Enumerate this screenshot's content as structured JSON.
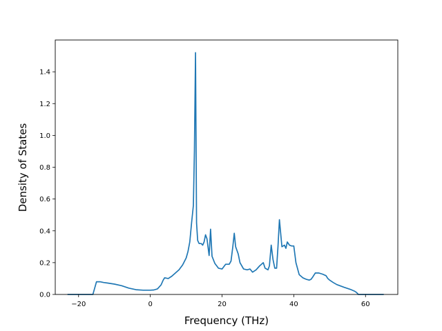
{
  "chart_data": {
    "type": "line",
    "title": "",
    "xlabel": "Frequency (THz)",
    "ylabel": "Density of States",
    "xlim": [
      -26.5,
      69.0
    ],
    "ylim": [
      0.0,
      1.6
    ],
    "xticks": [
      -20,
      0,
      20,
      40,
      60
    ],
    "yticks": [
      0.0,
      0.2,
      0.4,
      0.6,
      0.8,
      1.0,
      1.2,
      1.4
    ],
    "xtick_labels": [
      "−20",
      "0",
      "20",
      "40",
      "60"
    ],
    "ytick_labels": [
      "0.0",
      "0.2",
      "0.4",
      "0.6",
      "0.8",
      "1.0",
      "1.2",
      "1.4"
    ],
    "grid": false,
    "line_color": "#1f77b4",
    "series": [
      {
        "x": [
          -23.0,
          -20.0,
          -17.0,
          -16.0,
          -15.5,
          -15.0,
          -14.0,
          -13.0,
          -12.0,
          -10.0,
          -8.0,
          -6.0,
          -4.0,
          -2.0,
          0.0,
          1.0,
          2.0,
          3.0,
          3.6,
          4.0,
          5.0,
          6.0,
          7.0,
          8.0,
          9.0,
          10.0,
          10.5,
          11.0,
          11.5,
          12.0,
          12.3,
          12.6,
          12.9,
          13.2,
          13.6,
          14.2,
          14.6,
          15.0,
          15.4,
          15.8,
          16.4,
          16.8,
          17.2,
          18.0,
          19.0,
          20.0,
          21.0,
          22.0,
          22.5,
          23.0,
          23.4,
          23.8,
          24.5,
          25.0,
          26.0,
          27.0,
          27.8,
          28.5,
          29.5,
          30.5,
          31.0,
          31.5,
          32.0,
          32.8,
          33.2,
          33.7,
          34.2,
          34.7,
          35.2,
          35.6,
          36.0,
          36.7,
          37.4,
          37.8,
          38.2,
          38.8,
          39.4,
          40.0,
          40.6,
          41.5,
          42.5,
          43.5,
          44.3,
          44.8,
          45.3,
          46.0,
          47.0,
          48.0,
          49.0,
          49.5,
          50.0,
          51.0,
          52.0,
          54.0,
          56.0,
          57.0,
          57.5,
          58.0,
          60.0,
          62.0,
          65.0
        ],
        "y": [
          0.0,
          0.0,
          0.0,
          0.0,
          0.04,
          0.08,
          0.08,
          0.075,
          0.072,
          0.065,
          0.055,
          0.04,
          0.03,
          0.027,
          0.027,
          0.028,
          0.035,
          0.06,
          0.09,
          0.105,
          0.1,
          0.115,
          0.135,
          0.155,
          0.185,
          0.23,
          0.27,
          0.33,
          0.45,
          0.56,
          0.9,
          1.52,
          0.45,
          0.34,
          0.32,
          0.32,
          0.31,
          0.33,
          0.375,
          0.35,
          0.245,
          0.41,
          0.24,
          0.195,
          0.165,
          0.16,
          0.19,
          0.19,
          0.21,
          0.3,
          0.385,
          0.3,
          0.255,
          0.2,
          0.16,
          0.155,
          0.16,
          0.14,
          0.155,
          0.18,
          0.19,
          0.2,
          0.165,
          0.155,
          0.18,
          0.31,
          0.22,
          0.165,
          0.165,
          0.3,
          0.47,
          0.3,
          0.31,
          0.29,
          0.33,
          0.31,
          0.305,
          0.305,
          0.2,
          0.125,
          0.105,
          0.095,
          0.09,
          0.095,
          0.11,
          0.135,
          0.135,
          0.128,
          0.118,
          0.1,
          0.09,
          0.075,
          0.062,
          0.045,
          0.03,
          0.02,
          0.012,
          0.0,
          0.0,
          0.0,
          0.0
        ]
      }
    ]
  }
}
